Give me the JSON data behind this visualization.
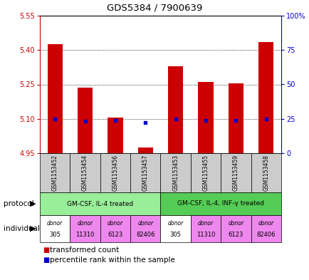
{
  "title": "GDS5384 / 7900639",
  "samples": [
    "GSM1153452",
    "GSM1153454",
    "GSM1153456",
    "GSM1153457",
    "GSM1153453",
    "GSM1153455",
    "GSM1153459",
    "GSM1153458"
  ],
  "bar_values": [
    5.425,
    5.235,
    5.105,
    4.975,
    5.33,
    5.26,
    5.255,
    5.435
  ],
  "bar_base": 4.95,
  "blue_values": [
    5.1,
    5.09,
    5.093,
    5.083,
    5.1,
    5.093,
    5.093,
    5.1
  ],
  "ylim_left": [
    4.95,
    5.55
  ],
  "yticks_left": [
    4.95,
    5.1,
    5.25,
    5.4,
    5.55
  ],
  "ylim_right": [
    0,
    100
  ],
  "yticks_right": [
    0,
    25,
    50,
    75,
    100
  ],
  "ytick_right_labels": [
    "0",
    "25",
    "50",
    "75",
    "100%"
  ],
  "bar_color": "#cc0000",
  "blue_color": "#0000cc",
  "left_axis_color": "#cc0000",
  "right_axis_color": "#0000cc",
  "protocol_groups": [
    {
      "label": "GM-CSF, IL-4 treated",
      "start": 0,
      "end": 3,
      "color": "#99ee99"
    },
    {
      "label": "GM-CSF, IL-4, INF-γ treated",
      "start": 4,
      "end": 7,
      "color": "#55cc55"
    }
  ],
  "individuals": [
    {
      "donor_label": "donor",
      "number_label": "305",
      "color": "#ffffff"
    },
    {
      "donor_label": "donor",
      "number_label": "11310",
      "color": "#ee88ee"
    },
    {
      "donor_label": "donor",
      "number_label": "6123",
      "color": "#ee88ee"
    },
    {
      "donor_label": "donor",
      "number_label": "82406",
      "color": "#ee88ee"
    },
    {
      "donor_label": "donor",
      "number_label": "305",
      "color": "#ffffff"
    },
    {
      "donor_label": "donor",
      "number_label": "11310",
      "color": "#ee88ee"
    },
    {
      "donor_label": "donor",
      "number_label": "6123",
      "color": "#ee88ee"
    },
    {
      "donor_label": "donor",
      "number_label": "82406",
      "color": "#ee88ee"
    }
  ],
  "bar_width": 0.5,
  "sample_bg_color": "#cccccc",
  "protocol_label": "protocol",
  "individual_label": "individual",
  "legend_items": [
    {
      "color": "#cc0000",
      "label": "transformed count"
    },
    {
      "color": "#0000cc",
      "label": "percentile rank within the sample"
    }
  ],
  "fig_width": 4.35,
  "fig_height": 3.93,
  "dpi": 100
}
